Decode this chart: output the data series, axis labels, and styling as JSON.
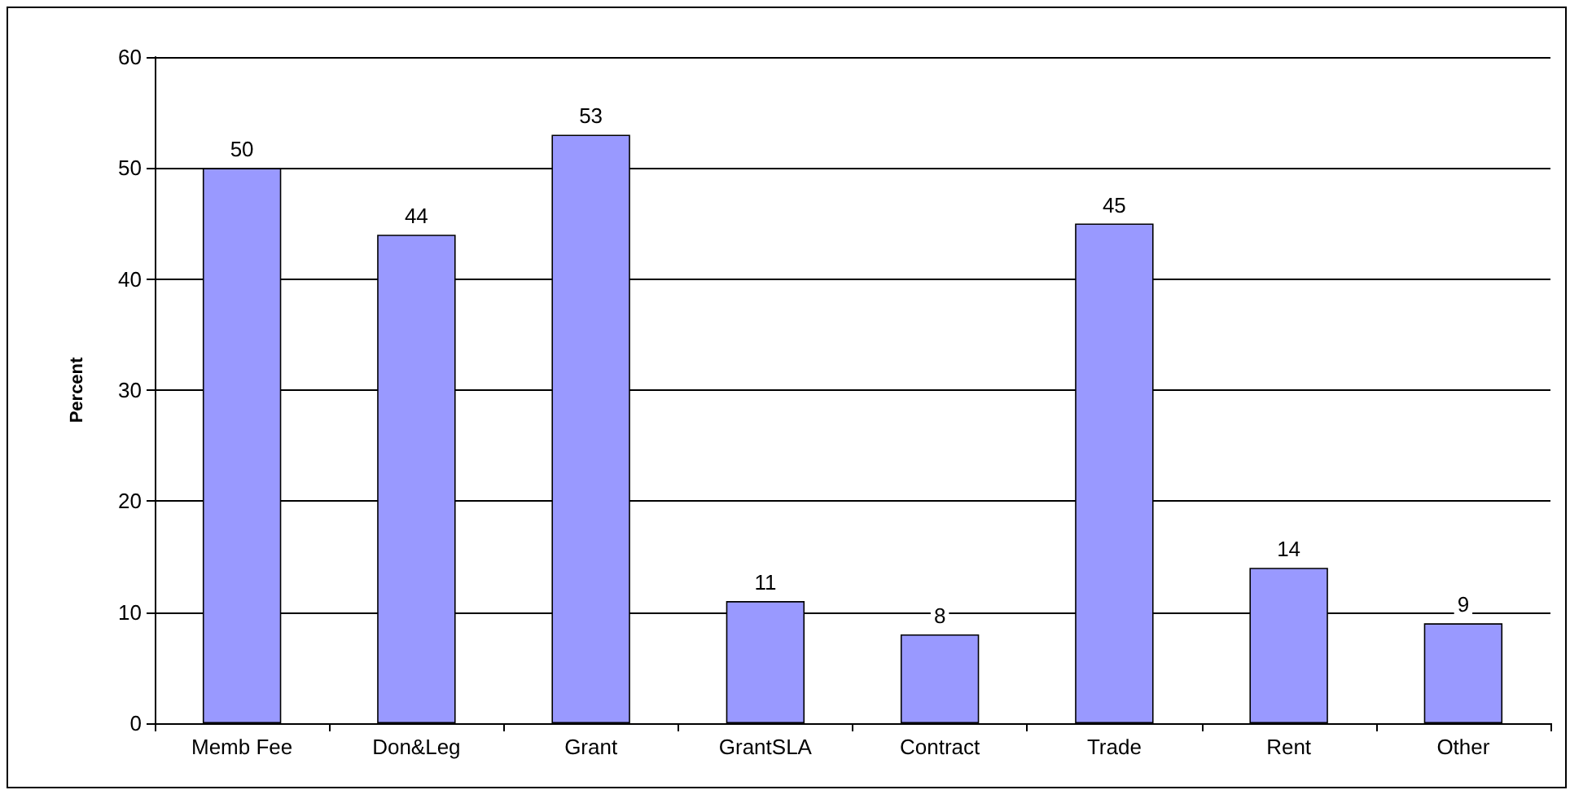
{
  "chart_data": {
    "type": "bar",
    "ylabel": "Percent",
    "categories": [
      "Memb Fee",
      "Don&Leg",
      "Grant",
      "GrantSLA",
      "Contract",
      "Trade",
      "Rent",
      "Other"
    ],
    "values": [
      50,
      44,
      53,
      11,
      8,
      45,
      14,
      9
    ],
    "color": "#9999ff",
    "ylim": [
      0,
      60
    ],
    "yticks": [
      0,
      10,
      20,
      30,
      40,
      50,
      60
    ],
    "grid": "y",
    "data_labels": true
  }
}
